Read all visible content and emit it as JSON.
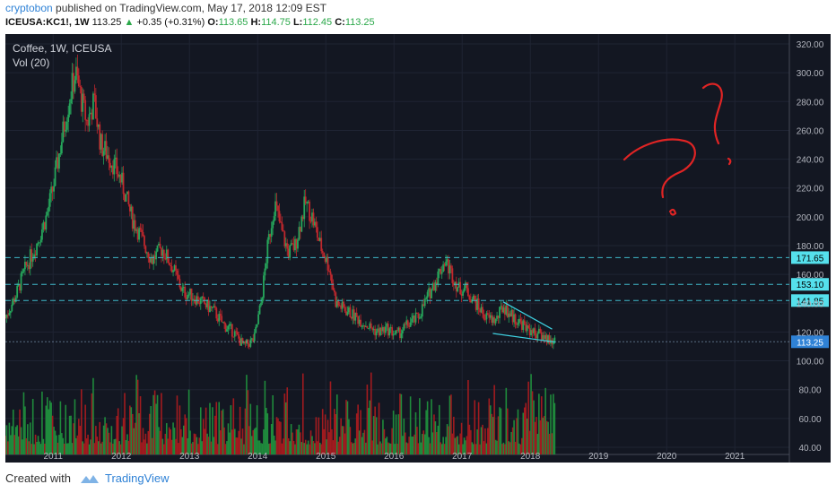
{
  "header": {
    "author": "cryptobon",
    "published": "published on TradingView.com, May 17, 2018 12:09 EST",
    "symbol": "ICEUSA:KC1!, 1W",
    "last": "113.25",
    "arrow": "▲",
    "change": "+0.35 (+0.31%)",
    "o_label": "O:",
    "o_val": "113.65",
    "h_label": "H:",
    "h_val": "114.75",
    "l_label": "L:",
    "l_val": "112.45",
    "c_label": "C:",
    "c_val": "113.25"
  },
  "legend": {
    "title": "Coffee, 1W, ICEUSA",
    "vol": "Vol (20)"
  },
  "footer": {
    "created_with": "Created with",
    "brand": "TradingView"
  },
  "colors": {
    "background": "#131722",
    "up": "#26a65b",
    "down": "#c0282d",
    "volume_up": "#1f8a3c",
    "volume_down": "#a11b1f",
    "level_line": "#3fb9c9",
    "wedge": "#3fd0e0",
    "price_label": "#2f82d6",
    "annotation": "#e02424"
  },
  "chart_data": {
    "type": "candlestick",
    "title": "Coffee, 1W, ICEUSA",
    "ylim": [
      35,
      325
    ],
    "y_ticks": [
      "320.00",
      "300.00",
      "280.00",
      "260.00",
      "240.00",
      "220.00",
      "200.00",
      "180.00",
      "160.00",
      "140.00",
      "120.00",
      "100.00",
      "80.00",
      "60.00",
      "40.00"
    ],
    "x_ticks": [
      "2011",
      "2012",
      "2013",
      "2014",
      "2015",
      "2016",
      "2017",
      "2018",
      "2019",
      "2020",
      "2021"
    ],
    "x_tick_years": [
      2011,
      2012,
      2013,
      2014,
      2015,
      2016,
      2017,
      2018,
      2019,
      2020,
      2021
    ],
    "x_range_years": [
      2010.3,
      2021.8
    ],
    "price_path": [
      [
        2010.3,
        130
      ],
      [
        2010.45,
        145
      ],
      [
        2010.6,
        165
      ],
      [
        2010.75,
        180
      ],
      [
        2010.9,
        200
      ],
      [
        2011.0,
        220
      ],
      [
        2011.15,
        260
      ],
      [
        2011.25,
        285
      ],
      [
        2011.33,
        300
      ],
      [
        2011.42,
        280
      ],
      [
        2011.5,
        265
      ],
      [
        2011.6,
        280
      ],
      [
        2011.7,
        250
      ],
      [
        2011.85,
        240
      ],
      [
        2012.0,
        225
      ],
      [
        2012.15,
        200
      ],
      [
        2012.3,
        185
      ],
      [
        2012.45,
        170
      ],
      [
        2012.6,
        178
      ],
      [
        2012.75,
        165
      ],
      [
        2012.9,
        148
      ],
      [
        2013.05,
        145
      ],
      [
        2013.2,
        140
      ],
      [
        2013.35,
        135
      ],
      [
        2013.5,
        125
      ],
      [
        2013.65,
        120
      ],
      [
        2013.8,
        110
      ],
      [
        2013.95,
        115
      ],
      [
        2014.05,
        140
      ],
      [
        2014.15,
        180
      ],
      [
        2014.25,
        210
      ],
      [
        2014.35,
        190
      ],
      [
        2014.45,
        175
      ],
      [
        2014.55,
        180
      ],
      [
        2014.7,
        210
      ],
      [
        2014.8,
        200
      ],
      [
        2014.92,
        180
      ],
      [
        2015.05,
        165
      ],
      [
        2015.15,
        140
      ],
      [
        2015.3,
        135
      ],
      [
        2015.45,
        130
      ],
      [
        2015.6,
        125
      ],
      [
        2015.75,
        120
      ],
      [
        2015.9,
        122
      ],
      [
        2016.05,
        118
      ],
      [
        2016.2,
        125
      ],
      [
        2016.35,
        130
      ],
      [
        2016.5,
        145
      ],
      [
        2016.65,
        160
      ],
      [
        2016.75,
        170
      ],
      [
        2016.85,
        160
      ],
      [
        2016.95,
        150
      ],
      [
        2017.05,
        150
      ],
      [
        2017.2,
        140
      ],
      [
        2017.35,
        130
      ],
      [
        2017.5,
        128
      ],
      [
        2017.6,
        138
      ],
      [
        2017.75,
        130
      ],
      [
        2017.9,
        125
      ],
      [
        2018.05,
        120
      ],
      [
        2018.2,
        117
      ],
      [
        2018.32,
        114
      ],
      [
        2018.37,
        113.25
      ]
    ],
    "volume_ylim": [
      35,
      120
    ],
    "levels": [
      {
        "label": "171.65",
        "value": 171.65
      },
      {
        "label": "153.10",
        "value": 153.1
      },
      {
        "label": "141.85",
        "value": 141.85
      }
    ],
    "last_price": {
      "label": "113.25",
      "value": 113.25
    },
    "wedge": {
      "upper": [
        [
          2017.6,
          141
        ],
        [
          2018.32,
          122
        ]
      ],
      "lower": [
        [
          2017.45,
          119
        ],
        [
          2018.37,
          113
        ]
      ]
    }
  }
}
